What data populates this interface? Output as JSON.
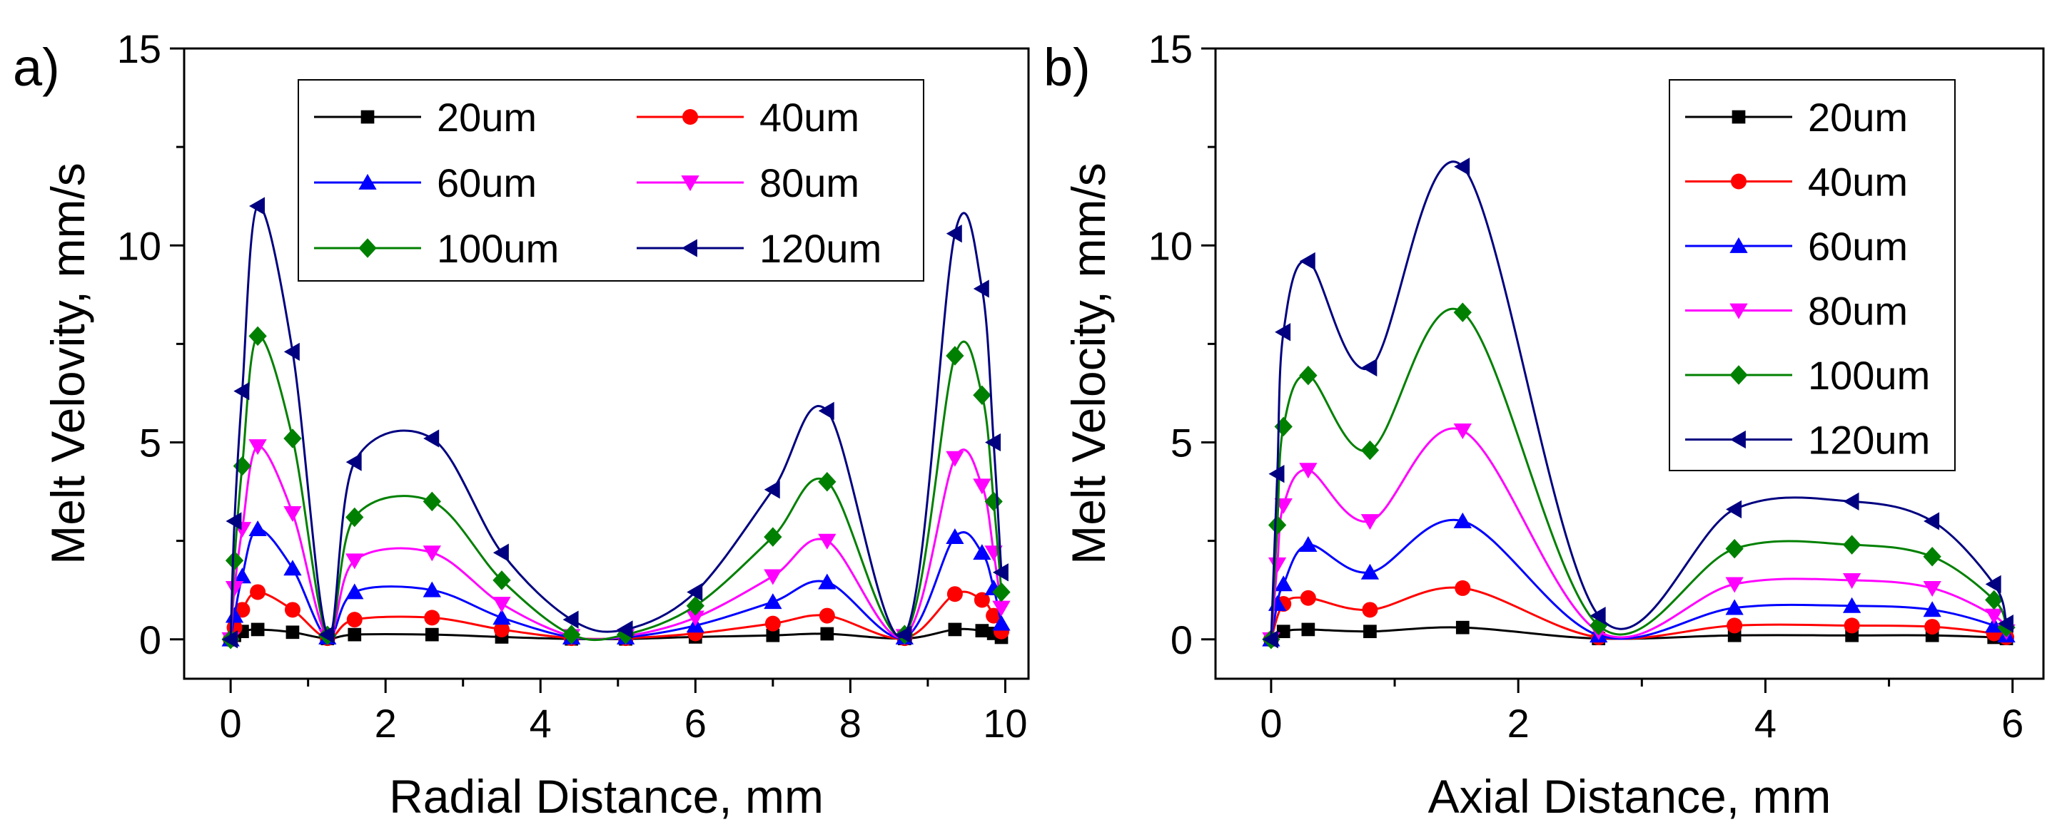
{
  "colors": {
    "20um": "#000000",
    "40um": "#ff0000",
    "60um": "#0000ff",
    "80um": "#ff00ff",
    "100um": "#008000",
    "120um": "#000080",
    "axis": "#000000"
  },
  "chart_data": [
    {
      "type": "line",
      "panel_label": "a)",
      "xlabel": "Radial Distance, mm",
      "ylabel": "Melt Velovity, mm/s",
      "xlim": [
        -0.6,
        10.3
      ],
      "ylim": [
        -1.0,
        15
      ],
      "xticks": [
        0,
        2,
        4,
        6,
        8,
        10
      ],
      "xtick_labels": [
        "0",
        "2",
        "4",
        "6",
        "8",
        "10"
      ],
      "yticks": [
        0,
        5,
        10,
        15
      ],
      "ytick_labels": [
        "0",
        "5",
        "10",
        "15"
      ],
      "legend_columns": 2,
      "legend_position": "top-center",
      "series": [
        {
          "name": "20um",
          "color_key": "20um",
          "marker": "square",
          "points": [
            [
              0,
              0
            ],
            [
              0.05,
              0.1
            ],
            [
              0.15,
              0.2
            ],
            [
              0.35,
              0.25
            ],
            [
              0.8,
              0.18
            ],
            [
              1.25,
              0.02
            ],
            [
              1.6,
              0.12
            ],
            [
              2.6,
              0.12
            ],
            [
              3.5,
              0.06
            ],
            [
              4.4,
              0.01
            ],
            [
              5.1,
              0.01
            ],
            [
              6.0,
              0.06
            ],
            [
              7.0,
              0.1
            ],
            [
              7.7,
              0.14
            ],
            [
              8.7,
              0.02
            ],
            [
              9.35,
              0.25
            ],
            [
              9.7,
              0.22
            ],
            [
              9.85,
              0.15
            ],
            [
              9.95,
              0.05
            ]
          ]
        },
        {
          "name": "40um",
          "color_key": "40um",
          "marker": "circle",
          "points": [
            [
              0,
              0
            ],
            [
              0.05,
              0.3
            ],
            [
              0.15,
              0.75
            ],
            [
              0.35,
              1.2
            ],
            [
              0.8,
              0.75
            ],
            [
              1.25,
              0.03
            ],
            [
              1.6,
              0.5
            ],
            [
              2.6,
              0.55
            ],
            [
              3.5,
              0.25
            ],
            [
              4.4,
              0.03
            ],
            [
              5.1,
              0.03
            ],
            [
              6.0,
              0.15
            ],
            [
              7.0,
              0.4
            ],
            [
              7.7,
              0.6
            ],
            [
              8.7,
              0.03
            ],
            [
              9.35,
              1.15
            ],
            [
              9.7,
              1.0
            ],
            [
              9.85,
              0.6
            ],
            [
              9.95,
              0.2
            ]
          ]
        },
        {
          "name": "60um",
          "color_key": "60um",
          "marker": "triangle-up",
          "points": [
            [
              0,
              0
            ],
            [
              0.05,
              0.6
            ],
            [
              0.15,
              1.6
            ],
            [
              0.35,
              2.8
            ],
            [
              0.8,
              1.8
            ],
            [
              1.25,
              0.05
            ],
            [
              1.6,
              1.2
            ],
            [
              2.6,
              1.25
            ],
            [
              3.5,
              0.55
            ],
            [
              4.4,
              0.05
            ],
            [
              5.1,
              0.05
            ],
            [
              6.0,
              0.35
            ],
            [
              7.0,
              0.95
            ],
            [
              7.7,
              1.45
            ],
            [
              8.7,
              0.05
            ],
            [
              9.35,
              2.6
            ],
            [
              9.7,
              2.2
            ],
            [
              9.85,
              1.3
            ],
            [
              9.95,
              0.4
            ]
          ]
        },
        {
          "name": "80um",
          "color_key": "80um",
          "marker": "triangle-down",
          "points": [
            [
              0,
              0
            ],
            [
              0.05,
              1.3
            ],
            [
              0.15,
              2.8
            ],
            [
              0.35,
              4.9
            ],
            [
              0.8,
              3.2
            ],
            [
              1.25,
              0.08
            ],
            [
              1.6,
              2.0
            ],
            [
              2.6,
              2.2
            ],
            [
              3.5,
              0.9
            ],
            [
              4.4,
              0.08
            ],
            [
              5.1,
              0.08
            ],
            [
              6.0,
              0.55
            ],
            [
              7.0,
              1.6
            ],
            [
              7.7,
              2.5
            ],
            [
              8.7,
              0.08
            ],
            [
              9.35,
              4.6
            ],
            [
              9.7,
              3.9
            ],
            [
              9.85,
              2.2
            ],
            [
              9.95,
              0.8
            ]
          ]
        },
        {
          "name": "100um",
          "color_key": "100um",
          "marker": "diamond",
          "points": [
            [
              0,
              0
            ],
            [
              0.05,
              2.0
            ],
            [
              0.15,
              4.4
            ],
            [
              0.35,
              7.7
            ],
            [
              0.8,
              5.1
            ],
            [
              1.25,
              0.1
            ],
            [
              1.6,
              3.1
            ],
            [
              2.6,
              3.5
            ],
            [
              3.5,
              1.5
            ],
            [
              4.4,
              0.12
            ],
            [
              5.1,
              0.12
            ],
            [
              6.0,
              0.85
            ],
            [
              7.0,
              2.6
            ],
            [
              7.7,
              4.0
            ],
            [
              8.7,
              0.12
            ],
            [
              9.35,
              7.2
            ],
            [
              9.7,
              6.2
            ],
            [
              9.85,
              3.5
            ],
            [
              9.95,
              1.2
            ]
          ]
        },
        {
          "name": "120um",
          "color_key": "120um",
          "marker": "triangle-left",
          "points": [
            [
              0,
              0
            ],
            [
              0.05,
              3.0
            ],
            [
              0.15,
              6.3
            ],
            [
              0.35,
              11.0
            ],
            [
              0.8,
              7.3
            ],
            [
              1.25,
              0.12
            ],
            [
              1.6,
              4.5
            ],
            [
              2.6,
              5.1
            ],
            [
              3.5,
              2.2
            ],
            [
              4.4,
              0.5
            ],
            [
              5.1,
              0.25
            ],
            [
              6.0,
              1.2
            ],
            [
              7.0,
              3.8
            ],
            [
              7.7,
              5.8
            ],
            [
              8.7,
              0.12
            ],
            [
              9.35,
              10.3
            ],
            [
              9.7,
              8.9
            ],
            [
              9.85,
              5.0
            ],
            [
              9.95,
              1.7
            ]
          ]
        }
      ]
    },
    {
      "type": "line",
      "panel_label": "b)",
      "xlabel": "Axial Distance, mm",
      "ylabel": "Melt Velocity, mm/s",
      "xlim": [
        -0.45,
        6.25
      ],
      "ylim": [
        -1.0,
        15
      ],
      "xticks": [
        0,
        2,
        4,
        6
      ],
      "xtick_labels": [
        "0",
        "2",
        "4",
        "6"
      ],
      "yticks": [
        0,
        5,
        10,
        15
      ],
      "ytick_labels": [
        "0",
        "5",
        "10",
        "15"
      ],
      "legend_columns": 1,
      "legend_position": "top-right",
      "series": [
        {
          "name": "20um",
          "color_key": "20um",
          "marker": "square",
          "points": [
            [
              0,
              0
            ],
            [
              0.1,
              0.2
            ],
            [
              0.3,
              0.25
            ],
            [
              0.8,
              0.2
            ],
            [
              1.55,
              0.3
            ],
            [
              2.65,
              0.02
            ],
            [
              3.75,
              0.1
            ],
            [
              4.7,
              0.1
            ],
            [
              5.35,
              0.1
            ],
            [
              5.85,
              0.05
            ],
            [
              5.95,
              0.02
            ]
          ]
        },
        {
          "name": "40um",
          "color_key": "40um",
          "marker": "circle",
          "points": [
            [
              0,
              0
            ],
            [
              0.1,
              0.9
            ],
            [
              0.3,
              1.05
            ],
            [
              0.8,
              0.75
            ],
            [
              1.55,
              1.3
            ],
            [
              2.65,
              0.05
            ],
            [
              3.75,
              0.35
            ],
            [
              4.7,
              0.35
            ],
            [
              5.35,
              0.32
            ],
            [
              5.85,
              0.15
            ],
            [
              5.95,
              0.05
            ]
          ]
        },
        {
          "name": "60um",
          "color_key": "60um",
          "marker": "triangle-up",
          "points": [
            [
              0,
              0
            ],
            [
              0.05,
              0.9
            ],
            [
              0.1,
              1.4
            ],
            [
              0.3,
              2.4
            ],
            [
              0.8,
              1.7
            ],
            [
              1.55,
              3.0
            ],
            [
              2.65,
              0.1
            ],
            [
              3.75,
              0.8
            ],
            [
              4.7,
              0.85
            ],
            [
              5.35,
              0.75
            ],
            [
              5.85,
              0.35
            ],
            [
              5.95,
              0.1
            ]
          ]
        },
        {
          "name": "80um",
          "color_key": "80um",
          "marker": "triangle-down",
          "points": [
            [
              0,
              0
            ],
            [
              0.05,
              1.9
            ],
            [
              0.1,
              3.4
            ],
            [
              0.3,
              4.3
            ],
            [
              0.8,
              3.0
            ],
            [
              1.55,
              5.3
            ],
            [
              2.65,
              0.2
            ],
            [
              3.75,
              1.4
            ],
            [
              4.7,
              1.5
            ],
            [
              5.35,
              1.3
            ],
            [
              5.85,
              0.6
            ],
            [
              5.95,
              0.2
            ]
          ]
        },
        {
          "name": "100um",
          "color_key": "100um",
          "marker": "diamond",
          "points": [
            [
              0,
              0
            ],
            [
              0.05,
              2.9
            ],
            [
              0.1,
              5.4
            ],
            [
              0.3,
              6.7
            ],
            [
              0.8,
              4.8
            ],
            [
              1.55,
              8.3
            ],
            [
              2.65,
              0.35
            ],
            [
              3.75,
              2.3
            ],
            [
              4.7,
              2.4
            ],
            [
              5.35,
              2.1
            ],
            [
              5.85,
              1.0
            ],
            [
              5.95,
              0.3
            ]
          ]
        },
        {
          "name": "120um",
          "color_key": "120um",
          "marker": "triangle-left",
          "points": [
            [
              0,
              0
            ],
            [
              0.05,
              4.2
            ],
            [
              0.1,
              7.8
            ],
            [
              0.3,
              9.6
            ],
            [
              0.8,
              6.9
            ],
            [
              1.55,
              12.0
            ],
            [
              2.65,
              0.6
            ],
            [
              3.75,
              3.3
            ],
            [
              4.7,
              3.5
            ],
            [
              5.35,
              3.0
            ],
            [
              5.85,
              1.4
            ],
            [
              5.95,
              0.4
            ]
          ]
        }
      ]
    }
  ]
}
